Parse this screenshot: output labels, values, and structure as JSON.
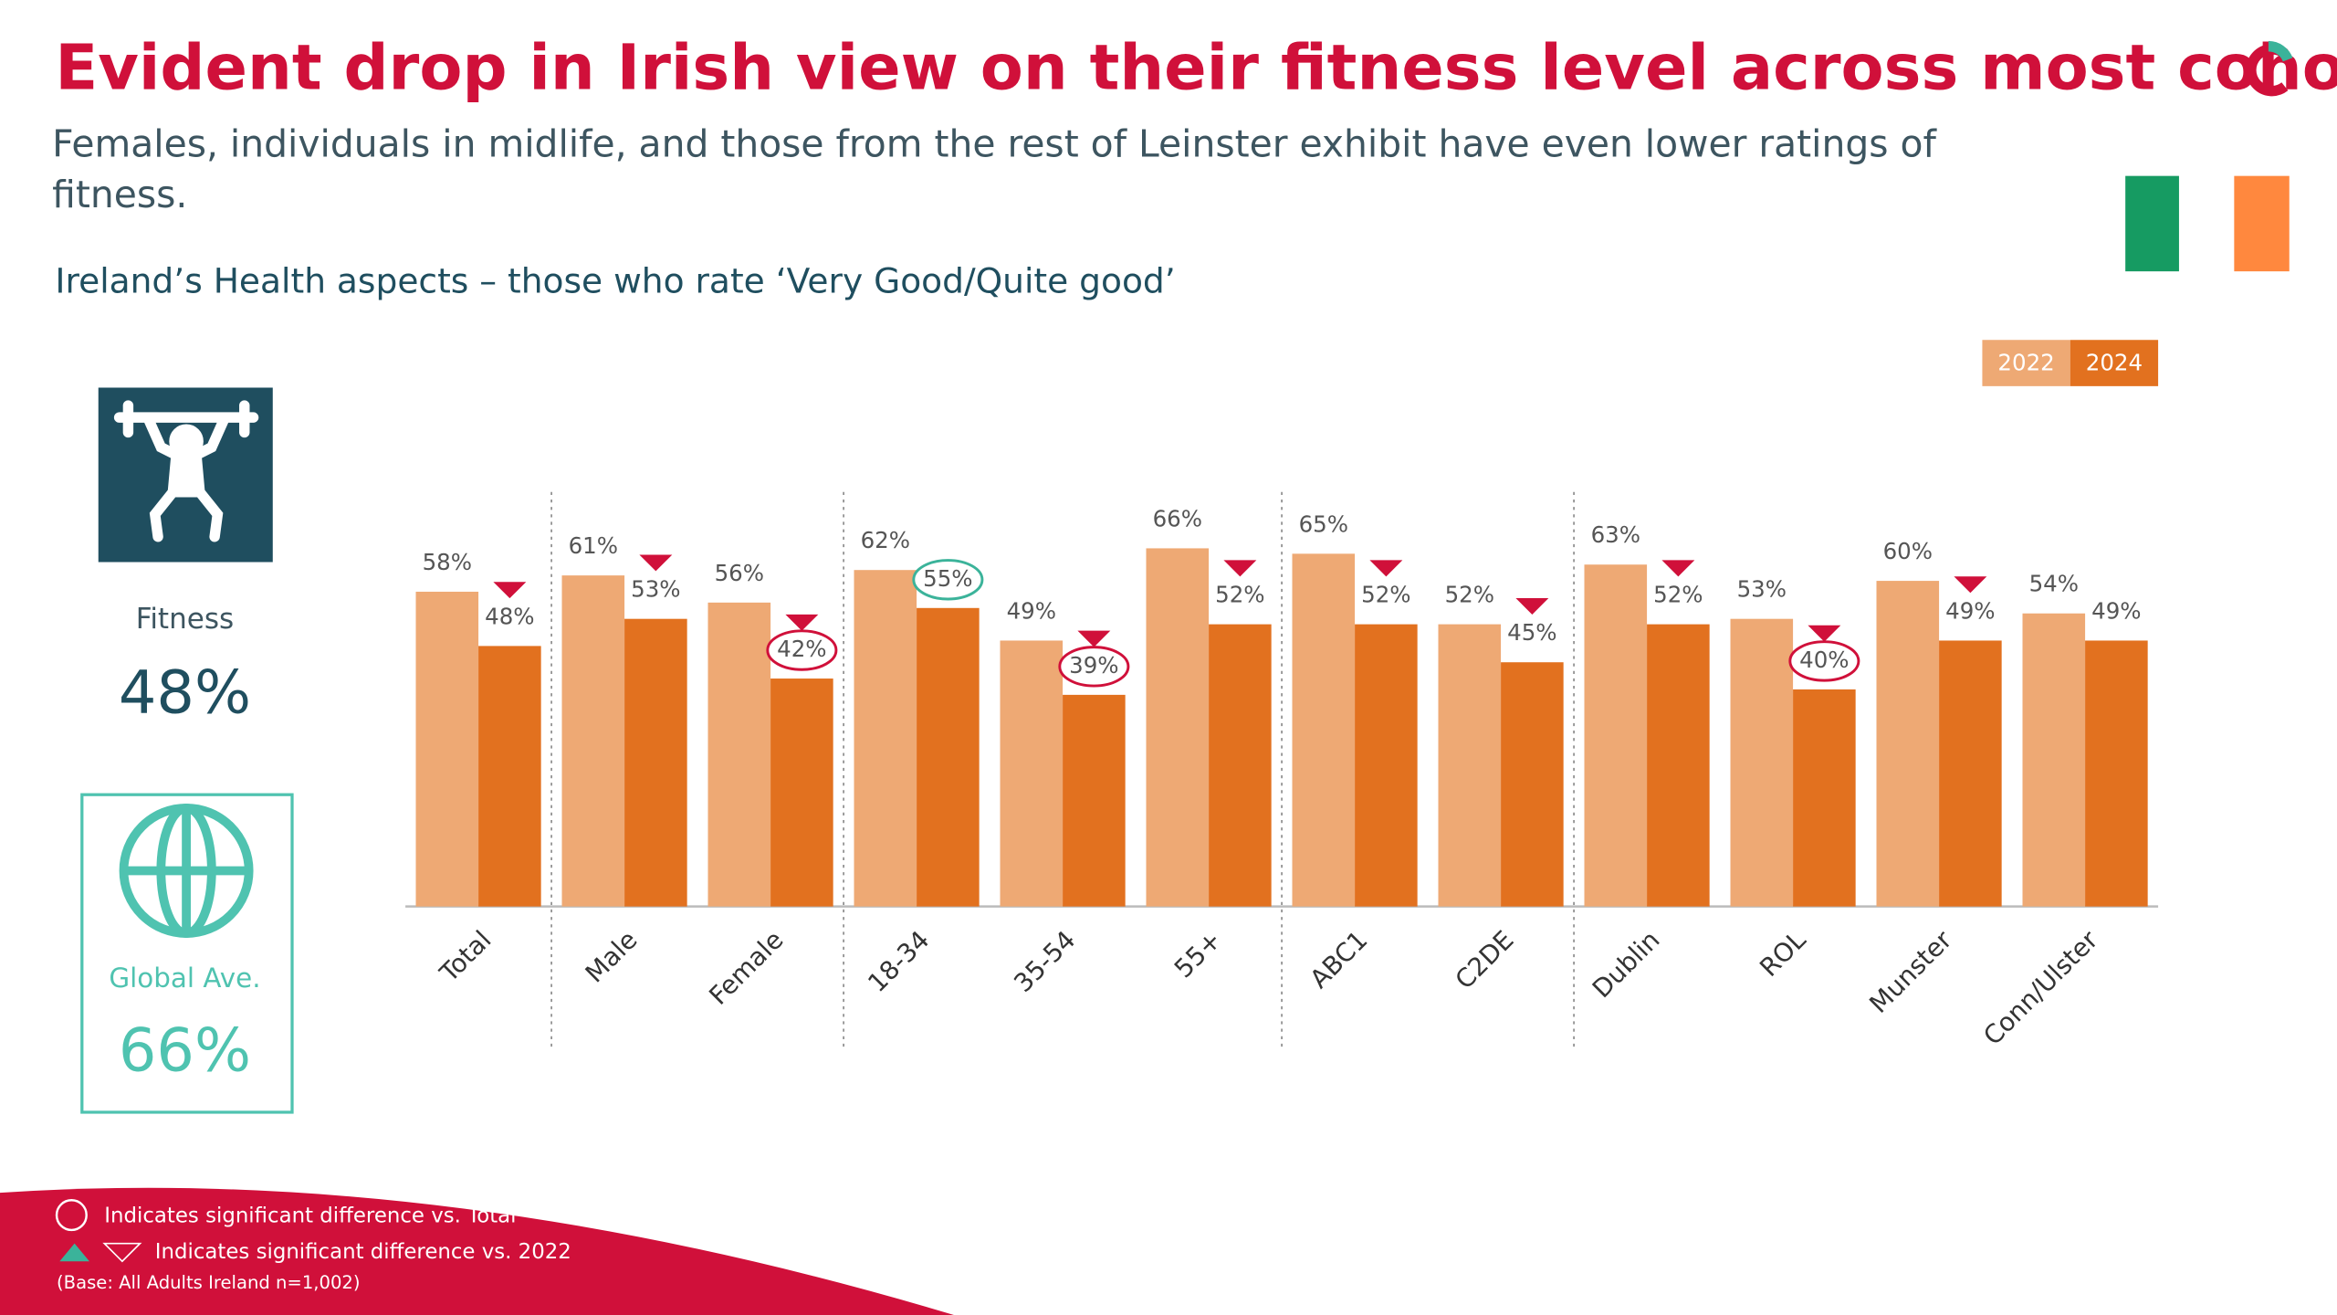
{
  "chart_data": {
    "type": "bar",
    "title": "Evident drop in Irish view on their fitness level across most cohorts",
    "subtitle": "Females, individuals in midlife, and those from the rest of Leinster exhibit have even lower ratings of fitness.",
    "chart_title": "Ireland’s Health aspects – those who rate ‘Very Good/Quite good’",
    "categories": [
      "Total",
      "Male",
      "Female",
      "18-34",
      "35-54",
      "55+",
      "ABC1",
      "C2DE",
      "Dublin",
      "ROL",
      "Munster",
      "Conn/Ulster"
    ],
    "series": [
      {
        "name": "2022",
        "color": "#eea974",
        "values": [
          58,
          61,
          56,
          62,
          49,
          66,
          65,
          52,
          63,
          53,
          60,
          54
        ],
        "value_labels": [
          "58%",
          "61%",
          "56%",
          "62%",
          "49%",
          "66%",
          "65%",
          "52%",
          "63%",
          "53%",
          "60%",
          "54%"
        ]
      },
      {
        "name": "2024",
        "color": "#e2711f",
        "values": [
          48,
          53,
          42,
          55,
          39,
          52,
          52,
          45,
          52,
          40,
          49,
          49
        ],
        "value_labels": [
          "48%",
          "53%",
          "42%",
          "55%",
          "39%",
          "52%",
          "52%",
          "45%",
          "52%",
          "40%",
          "49%",
          "49%"
        ],
        "sig_vs_total": [
          null,
          null,
          "lower",
          "higher",
          "lower",
          null,
          null,
          null,
          null,
          "lower",
          null,
          null
        ],
        "sig_vs_2022": [
          true,
          true,
          true,
          false,
          true,
          true,
          true,
          true,
          true,
          true,
          true,
          false
        ]
      }
    ],
    "legend": "top-right"
  },
  "panel": {
    "fitness_label": "Fitness",
    "fitness_value": "48%",
    "global_label": "Global Ave.",
    "global_value": "66%"
  },
  "footnotes": {
    "circle_note": "Indicates significant difference vs. Total",
    "triangle_note": "Indicates significant difference vs. 2022",
    "base": "(Base: All Adults Ireland  n=1,002)"
  }
}
